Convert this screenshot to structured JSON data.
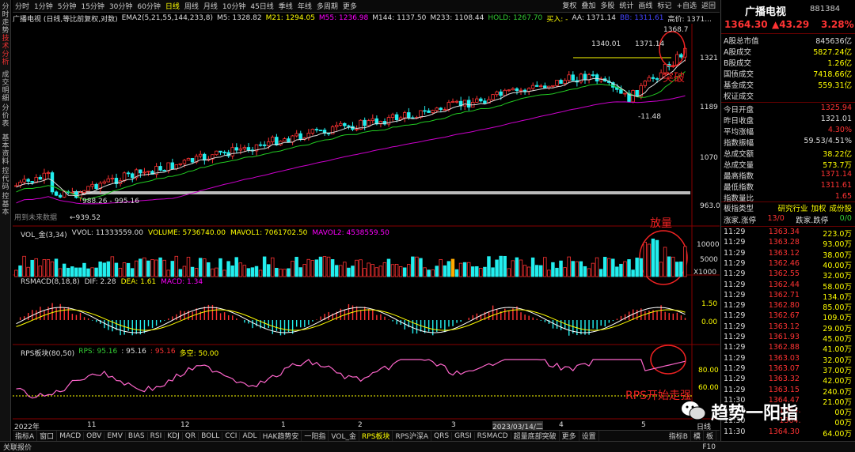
{
  "left_tabs": [
    "分时走势",
    "技术分析",
    "成交明细",
    "分价表",
    "基本资料",
    "控代码",
    "控基本"
  ],
  "periods": [
    "分时",
    "1分钟",
    "5分钟",
    "15分钟",
    "30分钟",
    "60分钟",
    "日线",
    "周线",
    "月线",
    "10分钟",
    "45日线",
    "季线",
    "年线",
    "多周期",
    "更多"
  ],
  "active_period": "日线",
  "tools": [
    "复权",
    "叠加",
    "多股",
    "统计",
    "画线",
    "标记",
    "+自选",
    "返回"
  ],
  "info": {
    "name": "广播电视 (日线,等比前复权,对数)",
    "ema": "EMA2(5,21,55,144,233,8)",
    "m5": "M5: 1328.82",
    "m21": "M21: 1294.05",
    "m55": "M55: 1236.98",
    "m144": "M144: 1137.50",
    "m233": "M233: 1108.44",
    "hold": "HOLD: 1267.70",
    "buy": "买入: -",
    "aa": "AA: 1371.14",
    "bb": "BB: 1311.61",
    "high": "高价: 1371..."
  },
  "annotations": {
    "p1340": "1340.01",
    "p1371": "1371.14",
    "p1368": "1368.7",
    "pm11": "-11.48",
    "p988": "988.26 - 995.16",
    "p939": "←939.52",
    "tupo": "突破",
    "fangliang": "放量",
    "rps_strong": "RPS开始走强",
    "nouse": "用到未来数据"
  },
  "price_axis": [
    "1321",
    "1189",
    "1070",
    "963.0"
  ],
  "vol": {
    "title": "VOL_金(3,34)",
    "vvol": "VVOL: 11333559.00",
    "volume": "VOLUME: 5736740.00",
    "mavol1": "MAVOL1: 7061702.50",
    "mavol2": "MAVOL2: 4538559.50",
    "axis": [
      "10000",
      "5000",
      "X1000"
    ]
  },
  "macd": {
    "title": "RSMACD(8,18,8)",
    "dif": "DIF: 2.28",
    "dea": "DEA: 1.61",
    "macd": "MACD: 1.34",
    "axis": [
      "1.50",
      "0.00"
    ]
  },
  "rps": {
    "title": "RPS板块(80,50)",
    "rps": "RPS: 95.16",
    "v2": ": 95.16",
    "v3": ": 95.16",
    "duo": "多空: 50.00",
    "axis": [
      "80.00",
      "60.00"
    ]
  },
  "xaxis": [
    "2022年",
    "11",
    "12",
    "1",
    "2",
    "3",
    "2023/03/14/二",
    "4",
    "5"
  ],
  "xaxis_right": "日线",
  "bottom_tabs": [
    "指标A",
    "窗口",
    "MACD",
    "OBV",
    "EMV",
    "BIAS",
    "RSI",
    "KDJ",
    "QR",
    "BOLL",
    "CCI",
    "ADL",
    "HAK趋势安",
    "一阳指",
    "VOL_金",
    "RPS板块",
    "RPS沪深A",
    "QRS",
    "GRSI",
    "RSMACD",
    "超量底部突破",
    "更多",
    "设置"
  ],
  "active_bottom": "RPS板块",
  "bottom_right": [
    "指标B",
    "模",
    "板"
  ],
  "status": "关联报价",
  "status_right": "F10",
  "right_panel": {
    "name": "广播电视",
    "code": "881384",
    "price": "1364.30",
    "change": "▲43.29",
    "pct": "3.28%",
    "rows": [
      {
        "k": "A股总市值",
        "v": "845636亿",
        "c": "white"
      },
      {
        "k": "A股成交",
        "v": "5827.24亿",
        "c": "yellow"
      },
      {
        "k": "B股成交",
        "v": "1.26亿",
        "c": "yellow"
      },
      {
        "k": "国债成交",
        "v": "7418.66亿",
        "c": "yellow"
      },
      {
        "k": "基金成交",
        "v": "559.31亿",
        "c": "yellow"
      },
      {
        "k": "权证成交",
        "v": "",
        "c": "yellow"
      },
      {
        "k": "今日开盘",
        "v": "1325.94",
        "c": "red"
      },
      {
        "k": "昨日收盘",
        "v": "1321.01",
        "c": "white"
      },
      {
        "k": "平均涨幅",
        "v": "4.30%",
        "c": "red"
      },
      {
        "k": "指数振幅",
        "v": "59.53/4.51%",
        "c": "white"
      },
      {
        "k": "总成交额",
        "v": "38.22亿",
        "c": "yellow"
      },
      {
        "k": "总成交量",
        "v": "573.7万",
        "c": "yellow"
      },
      {
        "k": "最高指数",
        "v": "1371.14",
        "c": "red"
      },
      {
        "k": "最低指数",
        "v": "1311.61",
        "c": "red"
      },
      {
        "k": "指数量比",
        "v": "1.65",
        "c": "red"
      }
    ],
    "plate_label": "板指类型",
    "plate_v1": "研究行业",
    "plate_v2": "加权",
    "plate_v3": "成份股",
    "updown_label": "涨家.涨停",
    "updown_v": "13/0",
    "downlabel": "跌家.跌停",
    "down_v": "0/0",
    "ticks": [
      {
        "t": "11:29",
        "p": "1363.34",
        "v": "223.0万"
      },
      {
        "t": "11:29",
        "p": "1363.28",
        "v": "93.00万"
      },
      {
        "t": "11:29",
        "p": "1363.12",
        "v": "38.00万"
      },
      {
        "t": "11:29",
        "p": "1362.46",
        "v": "40.00万"
      },
      {
        "t": "11:29",
        "p": "1362.55",
        "v": "32.00万"
      },
      {
        "t": "11:29",
        "p": "1362.44",
        "v": "58.00万"
      },
      {
        "t": "11:29",
        "p": "1362.71",
        "v": "134.0万"
      },
      {
        "t": "11:29",
        "p": "1362.80",
        "v": "85.00万"
      },
      {
        "t": "11:29",
        "p": "1362.67",
        "v": "109.0万"
      },
      {
        "t": "11:29",
        "p": "1363.12",
        "v": "29.00万"
      },
      {
        "t": "11:29",
        "p": "1361.93",
        "v": "45.00万"
      },
      {
        "t": "11:29",
        "p": "1362.88",
        "v": "41.00万"
      },
      {
        "t": "11:29",
        "p": "1363.03",
        "v": "32.00万"
      },
      {
        "t": "11:29",
        "p": "1363.07",
        "v": "37.00万"
      },
      {
        "t": "11:29",
        "p": "1363.32",
        "v": "42.00万"
      },
      {
        "t": "11:29",
        "p": "1363.15",
        "v": "240.0万"
      },
      {
        "t": "11:30",
        "p": "1364.47",
        "v": "21.00万"
      },
      {
        "t": "11:30",
        "p": "1364.",
        "v": "00万"
      },
      {
        "t": "11:30",
        "p": "1364.",
        "v": "00万"
      },
      {
        "t": "11:30",
        "p": "1364.30",
        "v": "64.00万"
      }
    ]
  },
  "watermark": "趋势一阳指"
}
